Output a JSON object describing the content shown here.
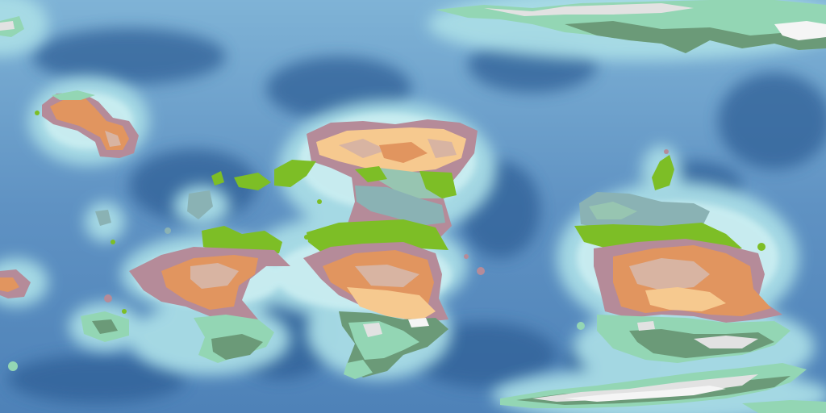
{
  "map": {
    "projection": "equirectangular",
    "view": "world-biome-map",
    "palette": {
      "ocean_deep": "#2f5f96",
      "ocean_mid": "#5f92c3",
      "ocean_shallow": "#a9dde6",
      "coast_foam": "#d6f4f5",
      "desert": "#f6c98f",
      "savanna": "#e1955f",
      "dry_shrub": "#d8b4a2",
      "highland": "#b58b99",
      "grassland": "#7dbe26",
      "steppe": "#97c5b1",
      "wetland": "#8ab2b4",
      "temperate_forest": "#6b9a78",
      "boreal": "#93d6b4",
      "tundra": "#e2e2e2",
      "ice": "#f5f5f5"
    },
    "labels": []
  }
}
